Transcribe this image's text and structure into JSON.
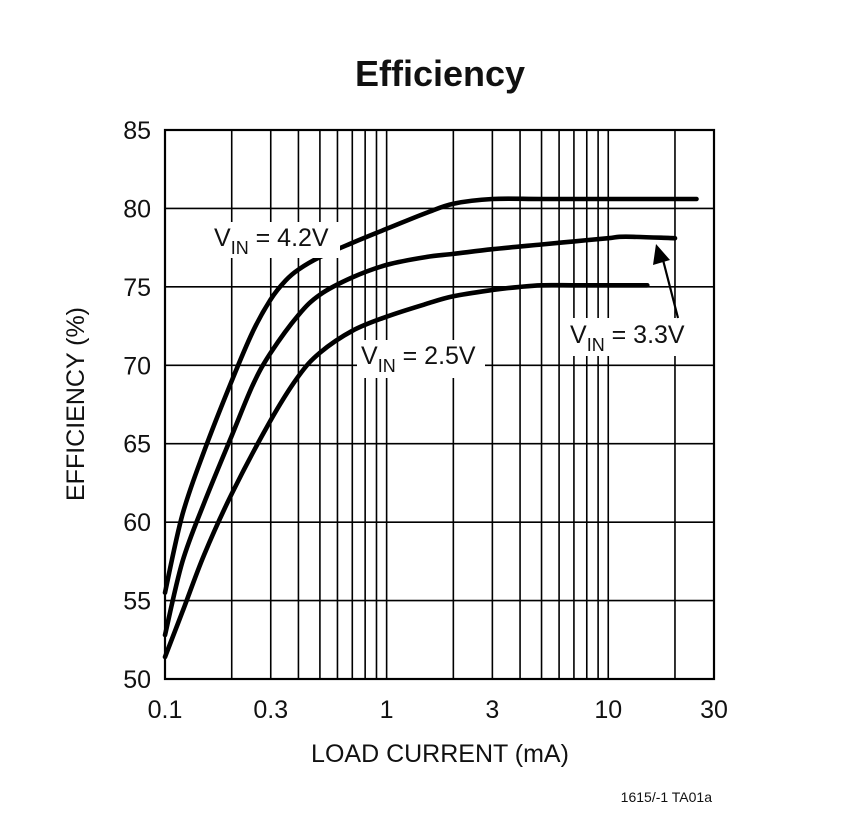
{
  "chart_data": {
    "type": "line",
    "title": "Efficiency",
    "xlabel": "LOAD CURRENT (mA)",
    "ylabel": "EFFICIENCY (%)",
    "xscale": "log",
    "xlim": [
      0.1,
      30
    ],
    "ylim": [
      50,
      85
    ],
    "x_ticks": [
      0.1,
      0.3,
      1,
      3,
      10,
      30
    ],
    "x_tick_labels": [
      "0.1",
      "0.3",
      "1",
      "3",
      "10",
      "30"
    ],
    "y_ticks": [
      50,
      55,
      60,
      65,
      70,
      75,
      80,
      85
    ],
    "y_tick_labels": [
      "50",
      "55",
      "60",
      "65",
      "70",
      "75",
      "80",
      "85"
    ],
    "grid": true,
    "series": [
      {
        "name": "VIN = 4.2V",
        "label_main": "V",
        "label_sub": "IN",
        "label_rest": " = 4.2V",
        "x": [
          0.1,
          0.12,
          0.15,
          0.2,
          0.25,
          0.3,
          0.35,
          0.4,
          0.5,
          0.7,
          1.0,
          1.5,
          2.0,
          3.0,
          5.0,
          10.0,
          15.0,
          25.0
        ],
        "y": [
          55.5,
          60.5,
          64.5,
          69.0,
          72.2,
          74.2,
          75.4,
          76.1,
          76.9,
          77.8,
          78.7,
          79.7,
          80.3,
          80.6,
          80.6,
          80.6,
          80.6,
          80.6
        ]
      },
      {
        "name": "VIN = 3.3V",
        "label_main": "V",
        "label_sub": "IN",
        "label_rest": " = 3.3V",
        "x": [
          0.1,
          0.12,
          0.15,
          0.2,
          0.25,
          0.3,
          0.4,
          0.5,
          0.7,
          1.0,
          1.5,
          2.0,
          3.0,
          5.0,
          7.0,
          10.0,
          12.0,
          20.0
        ],
        "y": [
          52.8,
          57.5,
          61.2,
          65.5,
          68.8,
          70.8,
          73.2,
          74.5,
          75.6,
          76.4,
          76.9,
          77.1,
          77.4,
          77.7,
          77.9,
          78.1,
          78.2,
          78.1
        ]
      },
      {
        "name": "VIN = 2.5V",
        "label_main": "V",
        "label_sub": "IN",
        "label_rest": " = 2.5V",
        "x": [
          0.1,
          0.12,
          0.15,
          0.2,
          0.3,
          0.4,
          0.5,
          0.7,
          1.0,
          1.5,
          2.0,
          3.0,
          4.0,
          5.0,
          7.0,
          10.0,
          15.0
        ],
        "y": [
          51.4,
          54.3,
          57.9,
          61.8,
          66.5,
          69.3,
          70.8,
          72.2,
          73.1,
          73.9,
          74.4,
          74.8,
          75.0,
          75.1,
          75.1,
          75.1,
          75.1
        ]
      }
    ],
    "annotations": {
      "arrow_to": "VIN = 3.3V"
    },
    "figure_id": "1615/-1 TA01a"
  }
}
